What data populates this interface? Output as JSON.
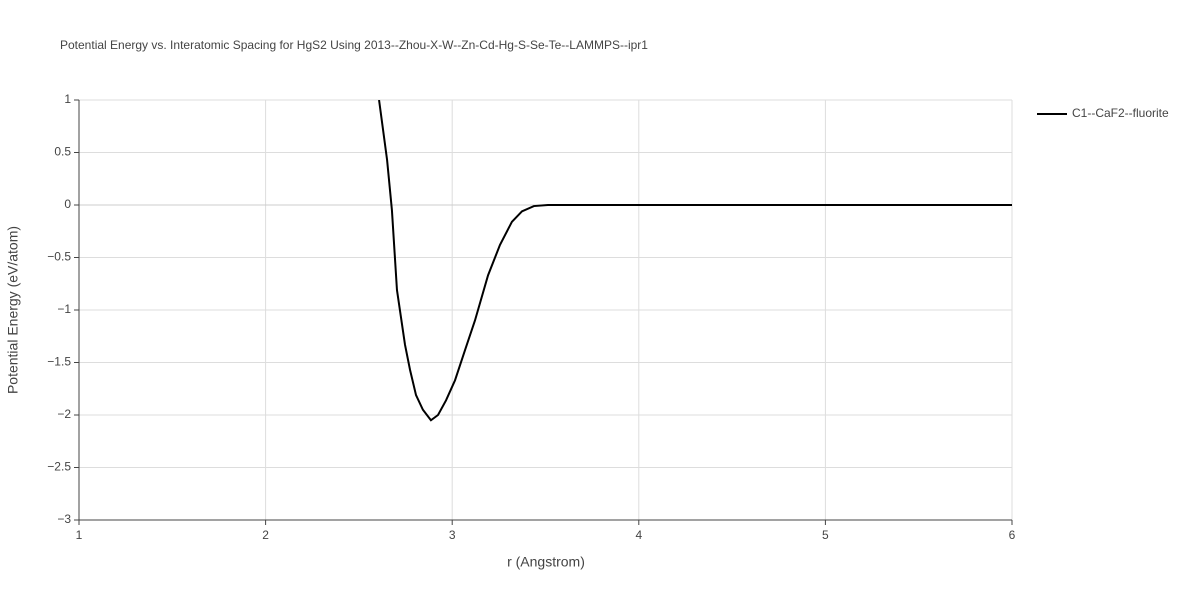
{
  "chart_data": {
    "type": "line",
    "title": "Potential Energy vs. Interatomic Spacing for HgS2 Using 2013--Zhou-X-W--Zn-Cd-Hg-S-Se-Te--LAMMPS--ipr1",
    "x_label": "r (Angstrom)",
    "y_label": "Potential Energy (eV/atom)",
    "xlim": [
      1,
      6
    ],
    "xticks": [
      1,
      2,
      3,
      4,
      5,
      6
    ],
    "ylim": [
      -3,
      1
    ],
    "yticks": [
      {
        "value": -3,
        "label": "−3"
      },
      {
        "value": -2.5,
        "label": "−2.5"
      },
      {
        "value": -2,
        "label": "−2"
      },
      {
        "value": -1.5,
        "label": "−1.5"
      },
      {
        "value": -1,
        "label": "−1"
      },
      {
        "value": -0.5,
        "label": "−0.5"
      },
      0,
      0.5,
      1
    ],
    "grid": true,
    "series": [
      {
        "name": "C1--CaF2--fluorite",
        "color": "#000000",
        "x": [
          2.608,
          2.651,
          2.677,
          2.704,
          2.747,
          2.774,
          2.806,
          2.843,
          2.886,
          2.924,
          2.967,
          3.015,
          3.069,
          3.122,
          3.192,
          3.256,
          3.32,
          3.374,
          3.438,
          3.513,
          6.0
        ],
        "values": [
          1.0,
          0.43,
          -0.05,
          -0.81,
          -1.33,
          -1.57,
          -1.81,
          -1.95,
          -2.05,
          -2.0,
          -1.86,
          -1.67,
          -1.38,
          -1.1,
          -0.67,
          -0.38,
          -0.16,
          -0.06,
          -0.01,
          0,
          0
        ]
      }
    ]
  }
}
